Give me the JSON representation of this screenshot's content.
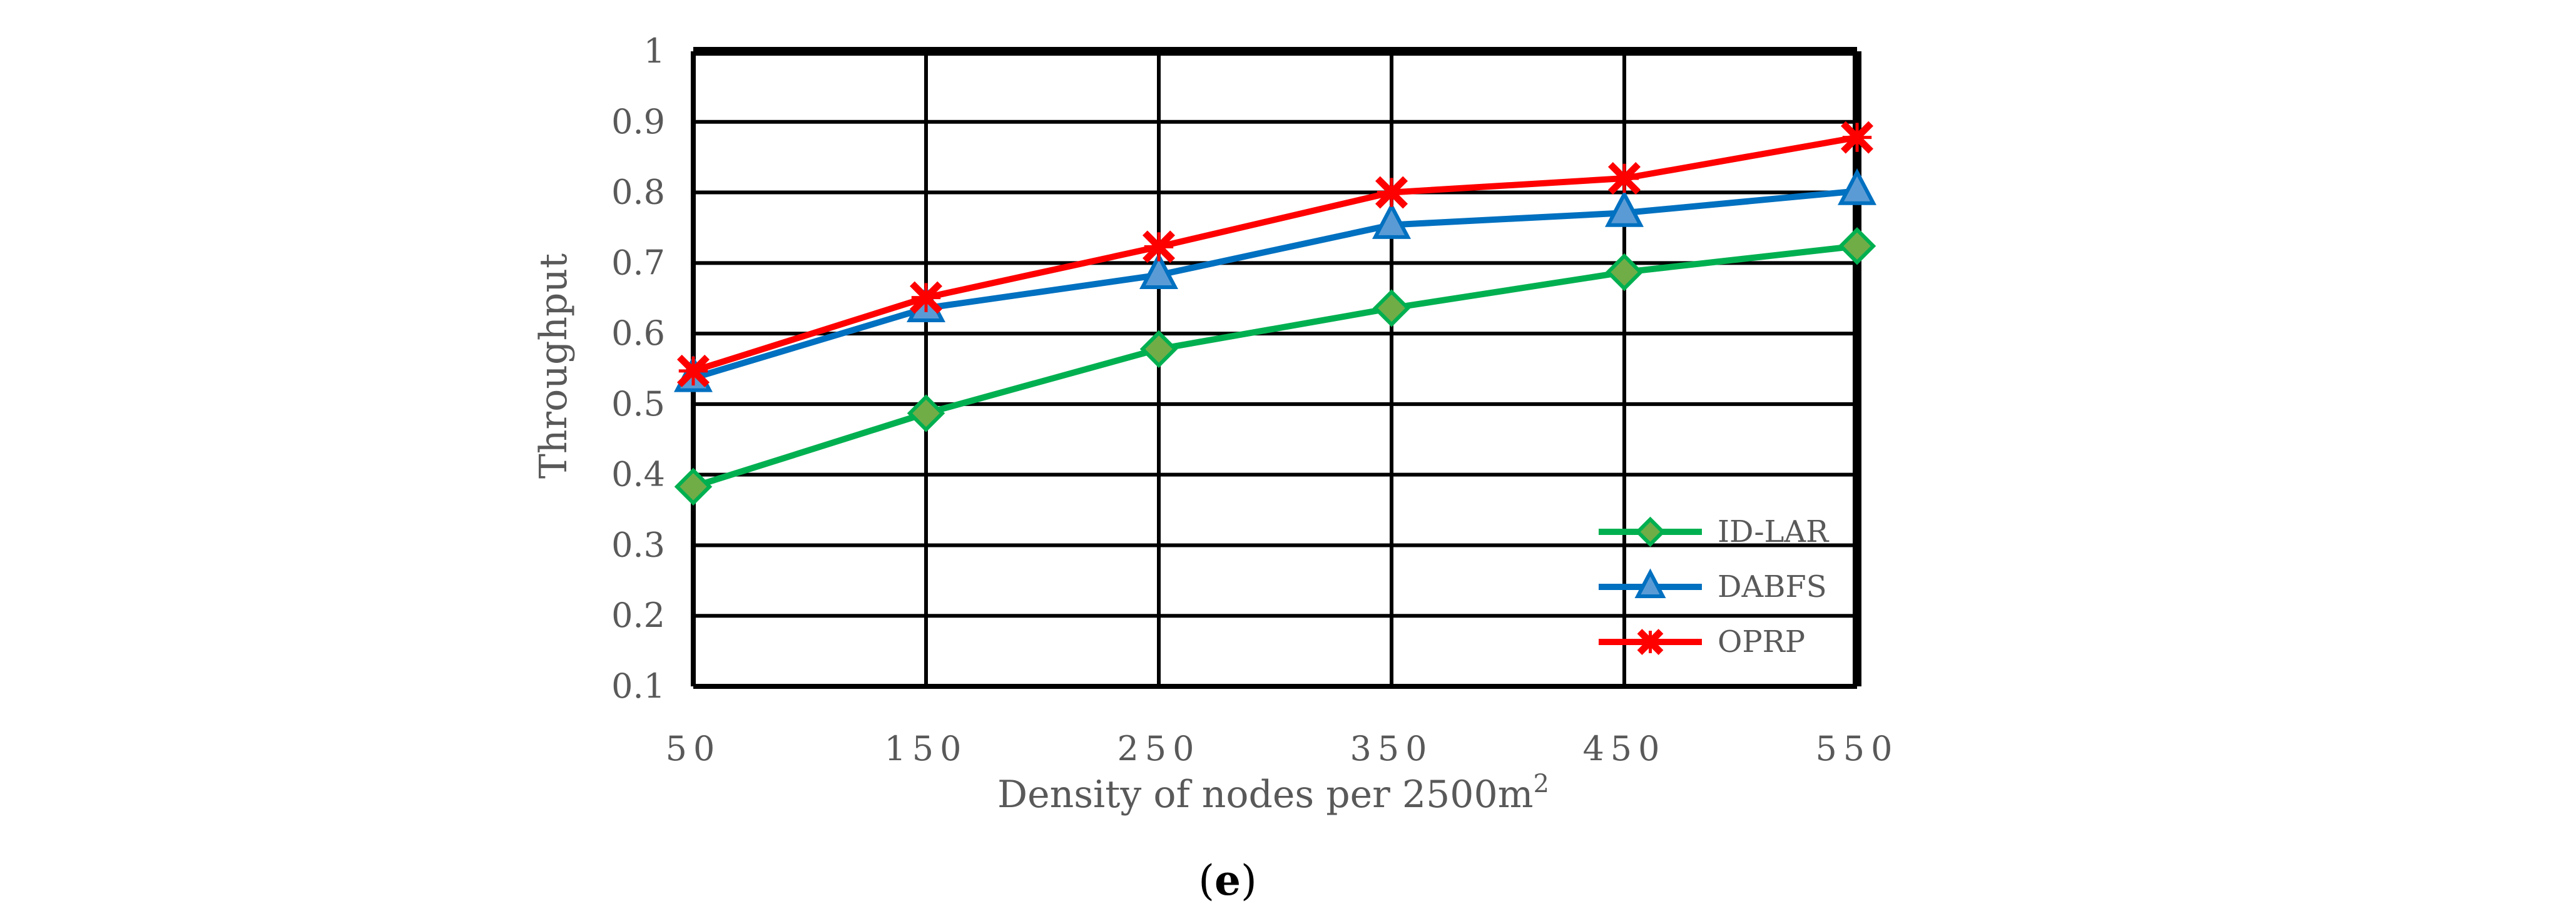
{
  "chart_data": {
    "type": "line",
    "title": "",
    "xlabel": "Density of nodes per 2500m",
    "xlabel_superscript": "2",
    "ylabel": "Throughput",
    "categories": [
      "50",
      "150",
      "250",
      "350",
      "450",
      "550"
    ],
    "x": [
      50,
      150,
      250,
      350,
      450,
      550
    ],
    "ylim": [
      0.1,
      1
    ],
    "yticks": [
      0.1,
      0.2,
      0.3,
      0.4,
      0.5,
      0.6,
      0.7,
      0.8,
      0.9,
      1
    ],
    "ytick_labels": [
      "0.1",
      "0.2",
      "0.3",
      "0.4",
      "0.5",
      "0.6",
      "0.7",
      "0.8",
      "0.9",
      "1"
    ],
    "grid": true,
    "legend_position": "bottom-right",
    "series": [
      {
        "name": "ID-LAR",
        "color": "#00B050",
        "marker": "diamond",
        "marker_fill": "#70AD47",
        "values": [
          0.383,
          0.487,
          0.578,
          0.636,
          0.687,
          0.724
        ]
      },
      {
        "name": "DABFS",
        "color": "#0070C0",
        "marker": "triangle",
        "marker_fill": "#5B9BD5",
        "values": [
          0.537,
          0.636,
          0.683,
          0.754,
          0.771,
          0.802
        ]
      },
      {
        "name": "OPRP",
        "color": "#FF0000",
        "marker": "x",
        "marker_fill": "#FF0000",
        "values": [
          0.547,
          0.651,
          0.723,
          0.8,
          0.82,
          0.878
        ]
      }
    ]
  },
  "caption": {
    "open": "(",
    "letter": "e",
    "close": ")"
  }
}
